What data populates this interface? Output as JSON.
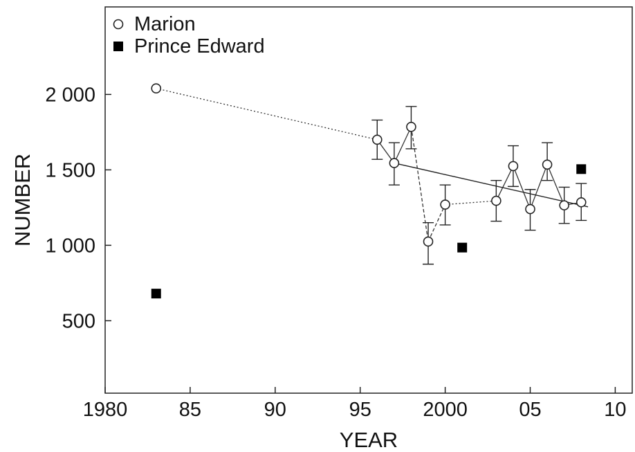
{
  "chart_data": {
    "type": "scatter",
    "xlabel": "YEAR",
    "ylabel": "NUMBER",
    "xlim": [
      1980,
      2011
    ],
    "ylim": [
      20,
      2580
    ],
    "x_ticks": [
      1980,
      1985,
      1990,
      1995,
      2000,
      2005,
      2010
    ],
    "x_tick_labels": [
      "1980",
      "85",
      "90",
      "95",
      "2000",
      "05",
      "10"
    ],
    "y_ticks": [
      500,
      1000,
      1500,
      2000
    ],
    "y_tick_labels": [
      "500",
      "1 000",
      "1 500",
      "2 000"
    ],
    "grid": false,
    "legend_position": "top-left",
    "series": [
      {
        "name": "Marion",
        "marker": "open-circle",
        "points": [
          {
            "x": 1983,
            "y": 2040
          },
          {
            "x": 1996,
            "y": 1700,
            "err_low": 1570,
            "err_high": 1830
          },
          {
            "x": 1997,
            "y": 1545,
            "err_low": 1400,
            "err_high": 1680
          },
          {
            "x": 1998,
            "y": 1785,
            "err_low": 1640,
            "err_high": 1920
          },
          {
            "x": 1999,
            "y": 1025,
            "err_low": 875,
            "err_high": 1150
          },
          {
            "x": 2000,
            "y": 1270,
            "err_low": 1135,
            "err_high": 1400
          },
          {
            "x": 2003,
            "y": 1295,
            "err_low": 1160,
            "err_high": 1430
          },
          {
            "x": 2004,
            "y": 1525,
            "err_low": 1390,
            "err_high": 1660
          },
          {
            "x": 2005,
            "y": 1240,
            "err_low": 1100,
            "err_high": 1370
          },
          {
            "x": 2006,
            "y": 1535,
            "err_low": 1430,
            "err_high": 1680
          },
          {
            "x": 2007,
            "y": 1265,
            "err_low": 1145,
            "err_high": 1385
          },
          {
            "x": 2008,
            "y": 1285,
            "err_low": 1165,
            "err_high": 1410
          }
        ],
        "solid_segments": [
          [
            1996,
            1997
          ],
          [
            1997,
            1998
          ],
          [
            2003,
            2004
          ],
          [
            2004,
            2005
          ],
          [
            2005,
            2006
          ],
          [
            2006,
            2007
          ],
          [
            2007,
            2008
          ]
        ],
        "dotted_segments": [
          [
            1983,
            1996
          ],
          [
            2000,
            2003
          ]
        ],
        "dashed_segments": [
          [
            1998,
            1999
          ],
          [
            1999,
            2000
          ]
        ],
        "trend_line": {
          "x": [
            1997,
            2008.4
          ],
          "y": [
            1545,
            1255
          ]
        }
      },
      {
        "name": "Prince Edward",
        "marker": "filled-square",
        "points": [
          {
            "x": 1983,
            "y": 680
          },
          {
            "x": 2001,
            "y": 985
          },
          {
            "x": 2008,
            "y": 1505
          }
        ]
      }
    ]
  }
}
